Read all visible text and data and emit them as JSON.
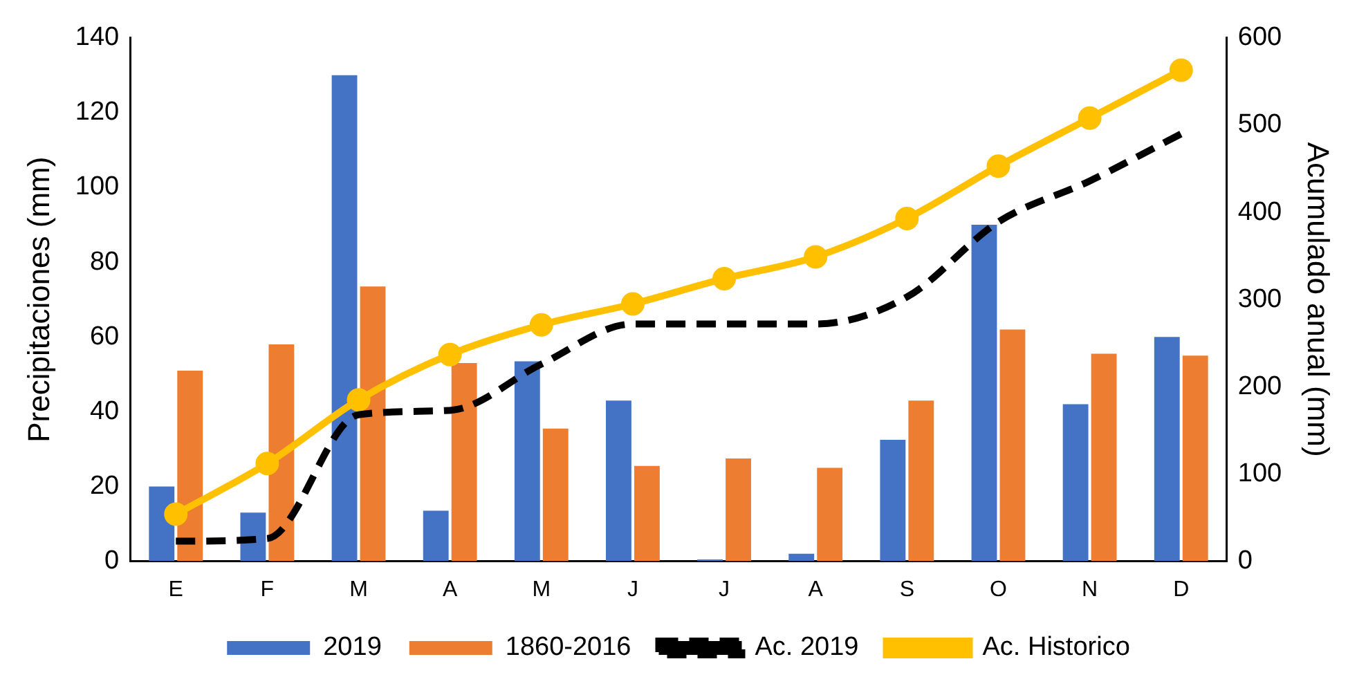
{
  "chart_data": {
    "type": "bar",
    "ylabel": "Precipitaciones (mm)",
    "y2label": "Acumulado anual (mm)",
    "categories": [
      "E",
      "F",
      "M",
      "A",
      "M",
      "J",
      "J",
      "A",
      "S",
      "O",
      "N",
      "D"
    ],
    "ylim": [
      0,
      140
    ],
    "yticks": [
      0,
      20,
      40,
      60,
      80,
      100,
      120,
      140
    ],
    "y2lim": [
      0,
      600
    ],
    "y2ticks": [
      0,
      100,
      200,
      300,
      400,
      500,
      600
    ],
    "legend": "bottom",
    "series": [
      {
        "name": "2019",
        "color": "#4472c4",
        "values": [
          20,
          13,
          130,
          13.5,
          53.5,
          43,
          0.5,
          2,
          32.5,
          90,
          42,
          60
        ]
      },
      {
        "name": "1860-2016",
        "color": "#ed7d31",
        "values": [
          51,
          58,
          73.5,
          53,
          35.5,
          25.5,
          27.5,
          25,
          43,
          62,
          55.5,
          55
        ]
      },
      {
        "name": "Ac. 2019",
        "type": "line",
        "axis": "y2",
        "color": "#000000",
        "line_style": "dashed",
        "marker": "none",
        "values": [
          23,
          26,
          168,
          173,
          226,
          272,
          272,
          272,
          303,
          389,
          436,
          490
        ]
      },
      {
        "name": "Ac. Historico",
        "type": "line",
        "axis": "y2",
        "color": "#ffc000",
        "line_style": "solid",
        "marker": "circle",
        "values": [
          54,
          112,
          185,
          237,
          271,
          295,
          324,
          349,
          393,
          453,
          508,
          563
        ]
      }
    ]
  }
}
